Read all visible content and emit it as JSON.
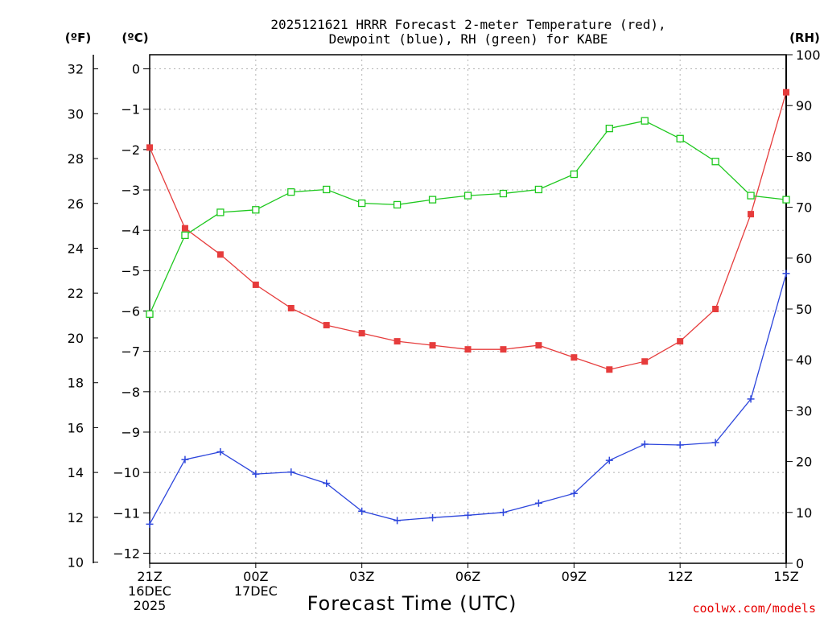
{
  "chart_data": {
    "type": "line",
    "title_line1": "2025121621 HRRR Forecast 2-meter Temperature (red),",
    "title_line2": "Dewpoint (blue), RH (green) for KABE",
    "xlabel": "Forecast Time (UTC)",
    "credit": "coolwx.com/models",
    "units": {
      "fahrenheit": "(ºF)",
      "celsius": "(ºC)",
      "rh": "(RH)"
    },
    "x_hours": [
      0,
      1,
      2,
      3,
      4,
      5,
      6,
      7,
      8,
      9,
      10,
      11,
      12,
      13,
      14,
      15,
      16,
      17,
      18
    ],
    "x_ticks": [
      {
        "hour": 0,
        "lines": [
          "21Z",
          "16DEC",
          "2025"
        ]
      },
      {
        "hour": 3,
        "lines": [
          "00Z",
          "17DEC"
        ]
      },
      {
        "hour": 6,
        "lines": [
          "03Z"
        ]
      },
      {
        "hour": 9,
        "lines": [
          "06Z"
        ]
      },
      {
        "hour": 12,
        "lines": [
          "09Z"
        ]
      },
      {
        "hour": 15,
        "lines": [
          "12Z"
        ]
      },
      {
        "hour": 18,
        "lines": [
          "15Z"
        ]
      }
    ],
    "celsius_axis": {
      "range": [
        -12.25,
        0.35
      ],
      "ticks": [
        "0",
        "−1",
        "−2",
        "−3",
        "−4",
        "−5",
        "−6",
        "−7",
        "−8",
        "−9",
        "−10",
        "−11",
        "−12"
      ]
    },
    "fahrenheit_axis": {
      "ticks": [
        "32",
        "30",
        "28",
        "26",
        "24",
        "22",
        "20",
        "18",
        "16",
        "14",
        "12",
        "10"
      ]
    },
    "rh_axis": {
      "range": [
        0,
        100
      ],
      "ticks": [
        "100",
        "90",
        "80",
        "70",
        "60",
        "50",
        "40",
        "30",
        "20",
        "10",
        "0"
      ]
    },
    "series": [
      {
        "name": "2-meter Temperature",
        "unit": "C",
        "color": "#e63c3c",
        "marker": "filled-square",
        "values": [
          -1.95,
          -3.95,
          -4.6,
          -5.35,
          -5.93,
          -6.35,
          -6.55,
          -6.75,
          -6.85,
          -6.95,
          -6.95,
          -6.85,
          -7.15,
          -7.45,
          -7.25,
          -6.75,
          -5.95,
          -3.6,
          -0.58
        ]
      },
      {
        "name": "Dewpoint",
        "unit": "C",
        "color": "#2d46dc",
        "marker": "plus",
        "values": [
          -11.28,
          -9.68,
          -9.49,
          -10.04,
          -9.99,
          -10.27,
          -10.96,
          -11.19,
          -11.12,
          -11.06,
          -10.99,
          -10.76,
          -10.52,
          -9.7,
          -9.3,
          -9.32,
          -9.26,
          -8.18,
          -5.07
        ]
      },
      {
        "name": "RH",
        "unit": "%",
        "color": "#1ec81e",
        "marker": "open-square",
        "values": [
          49,
          64.5,
          69,
          69.5,
          73,
          73.5,
          70.8,
          70.5,
          71.5,
          72.3,
          72.7,
          73.5,
          76.5,
          85.5,
          87,
          83.5,
          79,
          72.3,
          71.5
        ]
      }
    ]
  }
}
